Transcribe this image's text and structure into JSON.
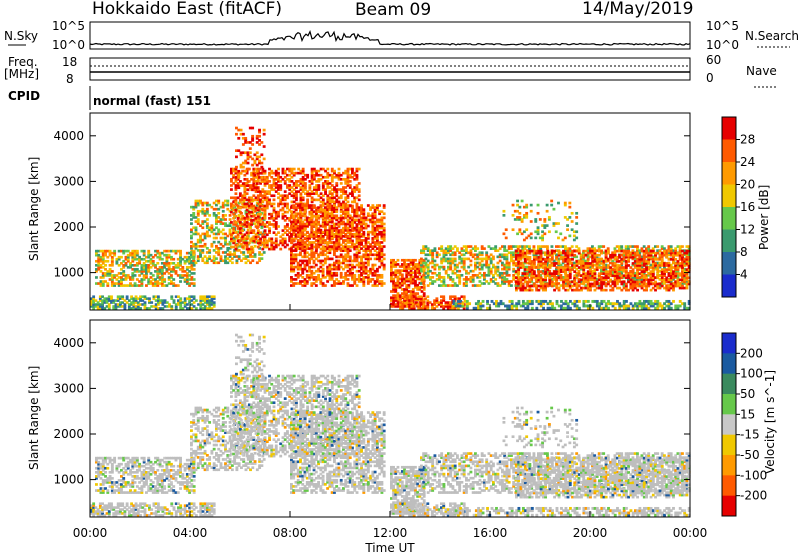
{
  "header": {
    "radar": "Hokkaido East (fitACF)",
    "beam": "Beam 09",
    "date": "14/May/2019"
  },
  "sky_panel": {
    "left_label": "N.Sky",
    "right_label": "N.Search",
    "left_ticks": [
      "10^5",
      "10^0"
    ],
    "right_ticks": [
      "10^5",
      "10^0"
    ]
  },
  "freq_panel": {
    "left_label_1": "Freq.",
    "left_label_2": "[MHz]",
    "right_label": "Nave",
    "left_ticks": [
      "18",
      "8"
    ],
    "right_ticks": [
      "60",
      "0"
    ]
  },
  "cpid": {
    "label": "CPID",
    "value": "normal (fast) 151"
  },
  "chart_data": [
    {
      "type": "heatmap",
      "parameter": "Power",
      "ylabel": "Slant Range [km]",
      "ylim": [
        180,
        4500
      ],
      "yticks": [
        "1000",
        "2000",
        "3000",
        "4000"
      ],
      "xlim": [
        "00:00",
        "24:00"
      ],
      "colorbar": {
        "label": "Power [dB]",
        "ticks": [
          "28",
          "24",
          "20",
          "16",
          "12",
          "8",
          "4"
        ],
        "colors": [
          "#e60000",
          "#ff5a00",
          "#ff9a00",
          "#f0c800",
          "#66c84a",
          "#3a9a6e",
          "#2c6aa0",
          "#1a2ccc"
        ]
      }
    },
    {
      "type": "heatmap",
      "parameter": "Velocity",
      "ylabel": "Slant Range [km]",
      "ylim": [
        180,
        4500
      ],
      "yticks": [
        "1000",
        "2000",
        "3000",
        "4000"
      ],
      "xlabel": "Time UT",
      "xticks": [
        "00:00",
        "04:00",
        "08:00",
        "12:00",
        "16:00",
        "20:00",
        "00:00"
      ],
      "xlim": [
        "00:00",
        "24:00"
      ],
      "colorbar": {
        "label": "Velocity [m s^-1]",
        "ticks": [
          "200",
          "100",
          "50",
          "15",
          "-15",
          "-50",
          "-100",
          "-200"
        ],
        "colors": [
          "#1a2ccc",
          "#1a5aa0",
          "#3a8a5e",
          "#66c84a",
          "#c8c8c8",
          "#f0c800",
          "#ff9a00",
          "#ff5a00",
          "#e60000"
        ]
      }
    }
  ],
  "colors": {
    "ground_scatter": "#bebebe"
  }
}
